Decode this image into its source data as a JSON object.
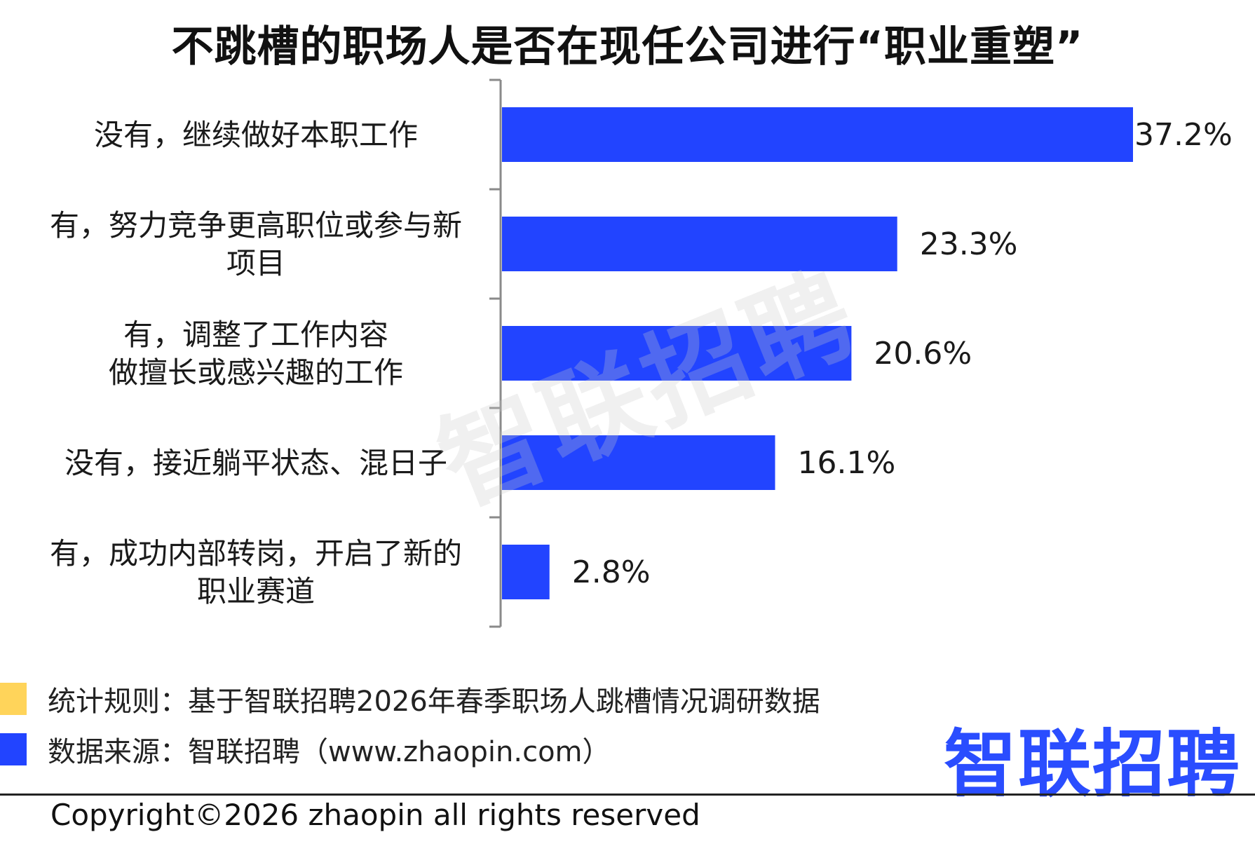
{
  "title": "不跳槽的职场人是否在现任公司进行“职业重塑”",
  "watermark": "智联招聘",
  "colors": {
    "bar": "#2244ff",
    "note_yellow": "#ffd45a",
    "note_blue": "#2244ff",
    "logo": "#2a4dff"
  },
  "chart_data": {
    "type": "bar",
    "orientation": "horizontal",
    "categories": [
      [
        "没有，继续做好本职工作"
      ],
      [
        "有，努力竞争更高职位或参与新",
        "项目"
      ],
      [
        "有，调整了工作内容",
        "做擅长或感兴趣的工作"
      ],
      [
        "没有，接近躺平状态、混日子"
      ],
      [
        "有，成功内部转岗，开启了新的",
        "职业赛道"
      ]
    ],
    "values": [
      37.2,
      23.3,
      20.6,
      16.1,
      2.8
    ],
    "value_labels": [
      "37.2%",
      "23.3%",
      "20.6%",
      "16.1%",
      "2.8%"
    ],
    "xlim": [
      0,
      37.2
    ],
    "grid": false
  },
  "notes": [
    {
      "text": "统计规则：基于智联招聘2026年春季职场人跳槽情况调研数据"
    },
    {
      "text": "数据来源：智联招聘（www.zhaopin.com）"
    }
  ],
  "logo_text": "智联招聘",
  "copyright": "Copyright©2026 zhaopin all rights reserved"
}
